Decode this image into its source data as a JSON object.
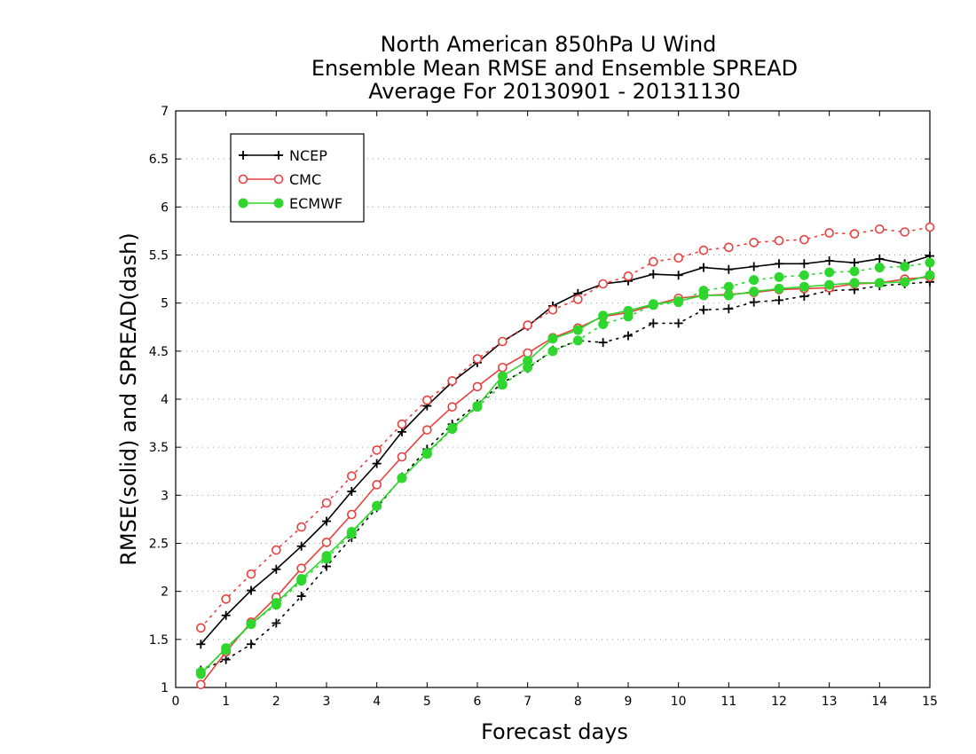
{
  "chart_data": {
    "type": "line",
    "title_lines": [
      "North American 850hPa U Wind",
      "Ensemble Mean RMSE and Ensemble SPREAD",
      "Average For 20130901 - 20131130"
    ],
    "xlabel": "Forecast days",
    "ylabel": "RMSE(solid) and SPREAD(dash)",
    "xlim": [
      0,
      15
    ],
    "ylim": [
      1,
      7
    ],
    "x_ticks": [
      "0",
      "1",
      "2",
      "3",
      "4",
      "5",
      "6",
      "7",
      "8",
      "9",
      "10",
      "11",
      "12",
      "13",
      "14",
      "15"
    ],
    "y_ticks": [
      "1",
      "1.5",
      "2",
      "2.5",
      "3",
      "3.5",
      "4",
      "4.5",
      "5",
      "5.5",
      "6",
      "6.5",
      "7"
    ],
    "grid": true,
    "legend_position": "top-left",
    "x": [
      0.5,
      1,
      1.5,
      2,
      2.5,
      3,
      3.5,
      4,
      4.5,
      5,
      5.5,
      6,
      6.5,
      7,
      7.5,
      8,
      8.5,
      9,
      9.5,
      10,
      10.5,
      11,
      11.5,
      12,
      12.5,
      13,
      13.5,
      14,
      14.5,
      15
    ],
    "series": [
      {
        "name": "NCEP",
        "color": "#000000",
        "marker": "plus",
        "rmse": [
          1.45,
          1.75,
          2.01,
          2.23,
          2.47,
          2.73,
          3.04,
          3.33,
          3.66,
          3.93,
          4.18,
          4.38,
          4.6,
          4.76,
          4.97,
          5.1,
          5.2,
          5.23,
          5.3,
          5.29,
          5.37,
          5.35,
          5.38,
          5.41,
          5.41,
          5.44,
          5.42,
          5.46,
          5.41,
          5.49
        ],
        "spread": [
          1.18,
          1.29,
          1.45,
          1.67,
          1.95,
          2.26,
          2.56,
          2.87,
          3.19,
          3.48,
          3.74,
          3.95,
          4.17,
          4.32,
          4.51,
          4.61,
          4.59,
          4.66,
          4.79,
          4.79,
          4.93,
          4.94,
          5.01,
          5.03,
          5.07,
          5.13,
          5.14,
          5.18,
          5.2,
          5.22
        ]
      },
      {
        "name": "CMC",
        "color": "#e8403e",
        "marker": "open-circle",
        "rmse": [
          1.03,
          1.37,
          1.68,
          1.94,
          2.24,
          2.51,
          2.8,
          3.11,
          3.4,
          3.68,
          3.92,
          4.13,
          4.33,
          4.48,
          4.64,
          4.74,
          4.86,
          4.9,
          4.98,
          5.05,
          5.08,
          5.09,
          5.11,
          5.14,
          5.15,
          5.16,
          5.2,
          5.21,
          5.25,
          5.27
        ],
        "spread": [
          1.62,
          1.92,
          2.18,
          2.43,
          2.67,
          2.92,
          3.2,
          3.47,
          3.74,
          3.99,
          4.19,
          4.42,
          4.6,
          4.77,
          4.93,
          5.04,
          5.2,
          5.28,
          5.43,
          5.47,
          5.55,
          5.58,
          5.63,
          5.65,
          5.66,
          5.73,
          5.72,
          5.77,
          5.74,
          5.79
        ]
      },
      {
        "name": "ECMWF",
        "color": "#2ed62e",
        "marker": "filled-circle",
        "rmse": [
          1.14,
          1.41,
          1.66,
          1.88,
          2.13,
          2.37,
          2.62,
          2.89,
          3.18,
          3.44,
          3.7,
          3.93,
          4.24,
          4.4,
          4.63,
          4.72,
          4.87,
          4.92,
          4.99,
          5.02,
          5.08,
          5.08,
          5.12,
          5.15,
          5.17,
          5.19,
          5.21,
          5.21,
          5.22,
          5.29
        ],
        "spread": [
          1.16,
          1.39,
          1.66,
          1.86,
          2.11,
          2.34,
          2.6,
          2.89,
          3.18,
          3.43,
          3.69,
          3.92,
          4.15,
          4.33,
          4.5,
          4.61,
          4.78,
          4.86,
          4.98,
          5.01,
          5.13,
          5.17,
          5.24,
          5.27,
          5.29,
          5.32,
          5.33,
          5.37,
          5.38,
          5.42
        ]
      }
    ]
  }
}
